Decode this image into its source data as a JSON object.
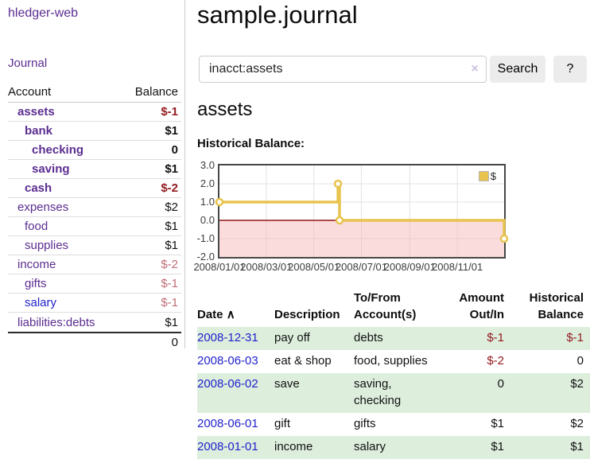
{
  "colors": {
    "purple": "#5b2d90",
    "blue": "#2222cc",
    "negative_strong": "#941b20",
    "negative_dim": "#c06d76",
    "row_green": "#ddeedd",
    "chart_gold": "#e8c34d",
    "chart_pink": "rgba(245,185,185,0.5)",
    "zero_line": "#8b1616",
    "grid": "#e3e3e3"
  },
  "sidebar": {
    "app_title": "hledger-web",
    "journal_label": "Journal",
    "accounts": {
      "header_account": "Account",
      "header_balance": "Balance",
      "rows": [
        {
          "name": "assets",
          "balance": "$-1",
          "indent": 1,
          "bold": true,
          "balance_style": "neg-strong",
          "link_color": "purple"
        },
        {
          "name": "bank",
          "balance": "$1",
          "indent": 2,
          "bold": true,
          "balance_style": "normal",
          "link_color": "purple"
        },
        {
          "name": "checking",
          "balance": "0",
          "indent": 3,
          "bold": true,
          "balance_style": "normal",
          "link_color": "purple"
        },
        {
          "name": "saving",
          "balance": "$1",
          "indent": 3,
          "bold": true,
          "balance_style": "normal",
          "link_color": "purple"
        },
        {
          "name": "cash",
          "balance": "$-2",
          "indent": 2,
          "bold": true,
          "balance_style": "neg-strong",
          "link_color": "purple"
        },
        {
          "name": "expenses",
          "balance": "$2",
          "indent": 1,
          "bold": false,
          "balance_style": "normal",
          "link_color": "purple"
        },
        {
          "name": "food",
          "balance": "$1",
          "indent": 2,
          "bold": false,
          "balance_style": "normal",
          "link_color": "purple"
        },
        {
          "name": "supplies",
          "balance": "$1",
          "indent": 2,
          "bold": false,
          "balance_style": "normal",
          "link_color": "purple"
        },
        {
          "name": "income",
          "balance": "$-2",
          "indent": 1,
          "bold": false,
          "balance_style": "neg-dim",
          "link_color": "purple"
        },
        {
          "name": "gifts",
          "balance": "$-1",
          "indent": 2,
          "bold": false,
          "balance_style": "neg-dim",
          "link_color": "purple"
        },
        {
          "name": "salary",
          "balance": "$-1",
          "indent": 2,
          "bold": false,
          "balance_style": "neg-dim",
          "link_color": "blue"
        },
        {
          "name": "liabilities:debts",
          "balance": "$1",
          "indent": 1,
          "bold": false,
          "balance_style": "normal",
          "link_color": "purple"
        }
      ],
      "total": "0"
    }
  },
  "main": {
    "title": "sample.journal",
    "search": {
      "value": "inacct:assets",
      "clear_icon": "×",
      "search_button": "Search",
      "help_button": "?"
    },
    "account_heading": "assets",
    "chart_label": "Historical Balance:"
  },
  "chart_data": {
    "type": "line",
    "title": "Historical Balance:",
    "step": true,
    "xlim_days": [
      0,
      365
    ],
    "ylim": [
      -2,
      3
    ],
    "y_ticks": [
      "3.0",
      "2.0",
      "1.0",
      "0.0",
      "-1.0",
      "-2.0"
    ],
    "y_tick_values": [
      3,
      2,
      1,
      0,
      -1,
      -2
    ],
    "x_ticks": [
      {
        "label": "2008/01/01",
        "day": 0
      },
      {
        "label": "2008/03/01",
        "day": 60
      },
      {
        "label": "2008/05/01",
        "day": 121
      },
      {
        "label": "2008/07/01",
        "day": 182
      },
      {
        "label": "2008/09/01",
        "day": 244
      },
      {
        "label": "2008/11/01",
        "day": 305
      }
    ],
    "series": [
      {
        "name": "$",
        "points": [
          {
            "date": "2008-01-01",
            "day": 0,
            "value": 1
          },
          {
            "date": "2008-06-01",
            "day": 152,
            "value": 2
          },
          {
            "date": "2008-06-03",
            "day": 154,
            "value": 0
          },
          {
            "date": "2008-12-31",
            "day": 365,
            "value": -1
          }
        ]
      }
    ],
    "legend": {
      "label": "$",
      "position": "top-right"
    },
    "negative_region": {
      "from": 0,
      "to": -2
    },
    "grid": true
  },
  "register": {
    "headers": {
      "date": "Date",
      "sort_icon": "∧",
      "description": "Description",
      "tofrom": "To/From Account(s)",
      "amount": "Amount Out/In",
      "balance": "Historical Balance"
    },
    "rows": [
      {
        "date": "2008-12-31",
        "description": "pay off",
        "tofrom": "debts",
        "amount": "$-1",
        "balance": "$-1",
        "amount_negative": true,
        "balance_negative": true,
        "green": true
      },
      {
        "date": "2008-06-03",
        "description": "eat & shop",
        "tofrom": "food, supplies",
        "amount": "$-2",
        "balance": "0",
        "amount_negative": true,
        "balance_negative": false,
        "green": false
      },
      {
        "date": "2008-06-02",
        "description": "save",
        "tofrom": "saving, checking",
        "amount": "0",
        "balance": "$2",
        "amount_negative": false,
        "balance_negative": false,
        "green": true
      },
      {
        "date": "2008-06-01",
        "description": "gift",
        "tofrom": "gifts",
        "amount": "$1",
        "balance": "$2",
        "amount_negative": false,
        "balance_negative": false,
        "green": false
      },
      {
        "date": "2008-01-01",
        "description": "income",
        "tofrom": "salary",
        "amount": "$1",
        "balance": "$1",
        "amount_negative": false,
        "balance_negative": false,
        "green": true
      }
    ]
  }
}
